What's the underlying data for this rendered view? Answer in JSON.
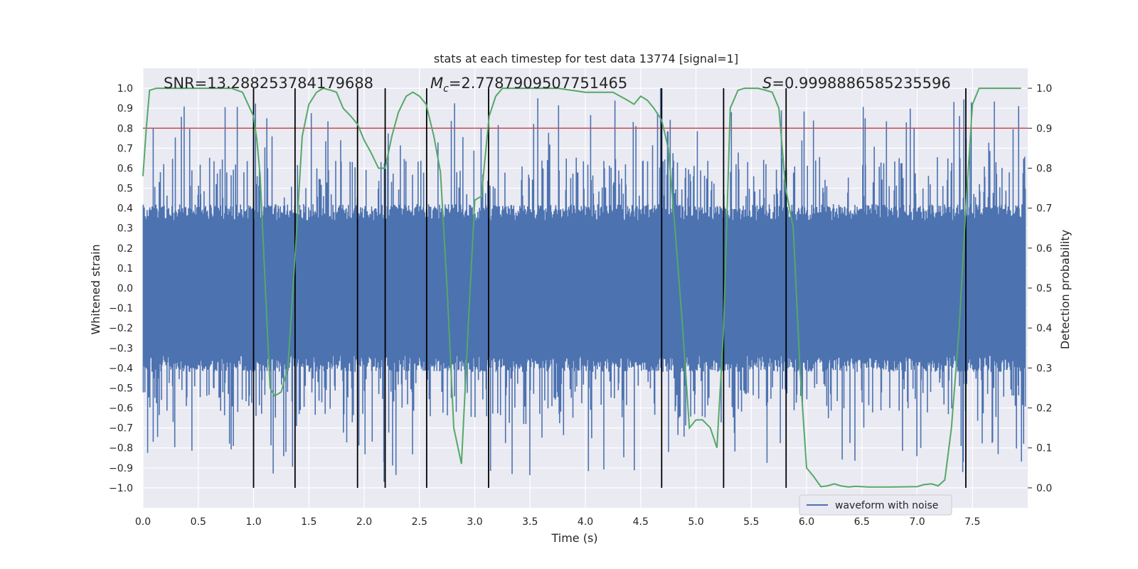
{
  "chart_data": {
    "type": "line",
    "title": "stats at each timestep for test data 13774 [signal=1]",
    "xlabel": "Time (s)",
    "ylabel": "Whitened strain",
    "y2label": "Detection probability",
    "xlim": [
      0.0,
      8.0
    ],
    "ylim": [
      -1.1,
      1.1
    ],
    "y2lim": [
      -0.05,
      1.05
    ],
    "xticks": [
      "0.0",
      "0.5",
      "1.0",
      "1.5",
      "2.0",
      "2.5",
      "3.0",
      "3.5",
      "4.0",
      "4.5",
      "5.0",
      "5.5",
      "6.0",
      "6.5",
      "7.0",
      "7.5"
    ],
    "yticks": [
      "-1.0",
      "-0.9",
      "-0.8",
      "-0.7",
      "-0.6",
      "-0.5",
      "-0.4",
      "-0.3",
      "-0.2",
      "-0.1",
      "0.0",
      "0.1",
      "0.2",
      "0.3",
      "0.4",
      "0.5",
      "0.6",
      "0.7",
      "0.8",
      "0.9",
      "1.0"
    ],
    "y2ticks": [
      "0.0",
      "0.1",
      "0.2",
      "0.3",
      "0.4",
      "0.5",
      "0.6",
      "0.7",
      "0.8",
      "0.9",
      "1.0"
    ],
    "annotations": {
      "snr": "SNR=13.288253784179688",
      "mc_symbol": "M",
      "mc_sub": "c",
      "mc_value": "=2.7787909507751465",
      "s_symbol": "S",
      "s_value": "=0.9998886585235596"
    },
    "threshold_y2": 0.9,
    "threshold_color": "#c44e52",
    "event_lines_x": [
      1.0,
      1.375,
      1.94,
      2.19,
      2.565,
      3.125,
      4.69,
      5.25,
      5.815,
      7.44
    ],
    "event_line_range": [
      -1.0,
      1.0
    ],
    "series": [
      {
        "name": "waveform with noise",
        "color": "#4c72b0",
        "description": "dense whitened noise, core band about +/-0.4 with spikes up to about +/-1.0"
      },
      {
        "name": "detection probability",
        "color": "#55a868",
        "x": [
          0.0,
          0.03,
          0.06,
          0.12,
          0.2,
          0.4,
          0.6,
          0.8,
          0.9,
          0.95,
          1.0,
          1.03,
          1.06,
          1.09,
          1.12,
          1.15,
          1.19,
          1.25,
          1.31,
          1.38,
          1.44,
          1.5,
          1.57,
          1.63,
          1.7,
          1.75,
          1.81,
          1.88,
          1.94,
          2.0,
          2.06,
          2.13,
          2.19,
          2.25,
          2.31,
          2.38,
          2.44,
          2.5,
          2.56,
          2.63,
          2.69,
          2.75,
          2.81,
          2.88,
          2.94,
          3.0,
          3.06,
          3.13,
          3.19,
          3.25,
          3.31,
          3.5,
          3.75,
          4.0,
          4.25,
          4.38,
          4.44,
          4.5,
          4.56,
          4.62,
          4.69,
          4.75,
          4.81,
          4.88,
          4.94,
          5.0,
          5.06,
          5.13,
          5.19,
          5.25,
          5.31,
          5.38,
          5.44,
          5.5,
          5.56,
          5.63,
          5.69,
          5.75,
          5.81,
          5.88,
          5.94,
          6.0,
          6.06,
          6.13,
          6.19,
          6.25,
          6.31,
          6.38,
          6.44,
          6.5,
          6.56,
          6.75,
          7.0,
          7.06,
          7.13,
          7.19,
          7.25,
          7.31,
          7.38,
          7.44,
          7.5,
          7.56,
          7.63,
          7.69,
          7.75,
          7.81,
          7.88,
          7.94
        ],
        "values": [
          0.78,
          0.9,
          0.995,
          1.0,
          1.0,
          1.0,
          1.0,
          1.0,
          0.99,
          0.96,
          0.93,
          0.87,
          0.78,
          0.6,
          0.42,
          0.25,
          0.23,
          0.24,
          0.3,
          0.6,
          0.88,
          0.96,
          0.99,
          1.0,
          0.995,
          0.99,
          0.95,
          0.93,
          0.91,
          0.87,
          0.84,
          0.8,
          0.8,
          0.88,
          0.94,
          0.98,
          0.99,
          0.98,
          0.96,
          0.88,
          0.79,
          0.5,
          0.15,
          0.06,
          0.4,
          0.72,
          0.73,
          0.93,
          0.98,
          1.0,
          1.0,
          1.0,
          1.0,
          0.99,
          0.99,
          0.97,
          0.96,
          0.98,
          0.97,
          0.95,
          0.92,
          0.85,
          0.65,
          0.4,
          0.15,
          0.17,
          0.17,
          0.15,
          0.1,
          0.4,
          0.95,
          0.995,
          1.0,
          1.0,
          1.0,
          0.995,
          0.99,
          0.95,
          0.75,
          0.65,
          0.3,
          0.05,
          0.03,
          0.003,
          0.005,
          0.01,
          0.005,
          0.002,
          0.004,
          0.003,
          0.002,
          0.002,
          0.003,
          0.008,
          0.01,
          0.005,
          0.02,
          0.15,
          0.4,
          0.7,
          0.96,
          1.0,
          1.0,
          1.0,
          1.0,
          1.0,
          1.0,
          1.0
        ]
      }
    ],
    "legend": {
      "placement": "lower-center-right",
      "entries": [
        "waveform with noise"
      ]
    },
    "grid": true
  }
}
